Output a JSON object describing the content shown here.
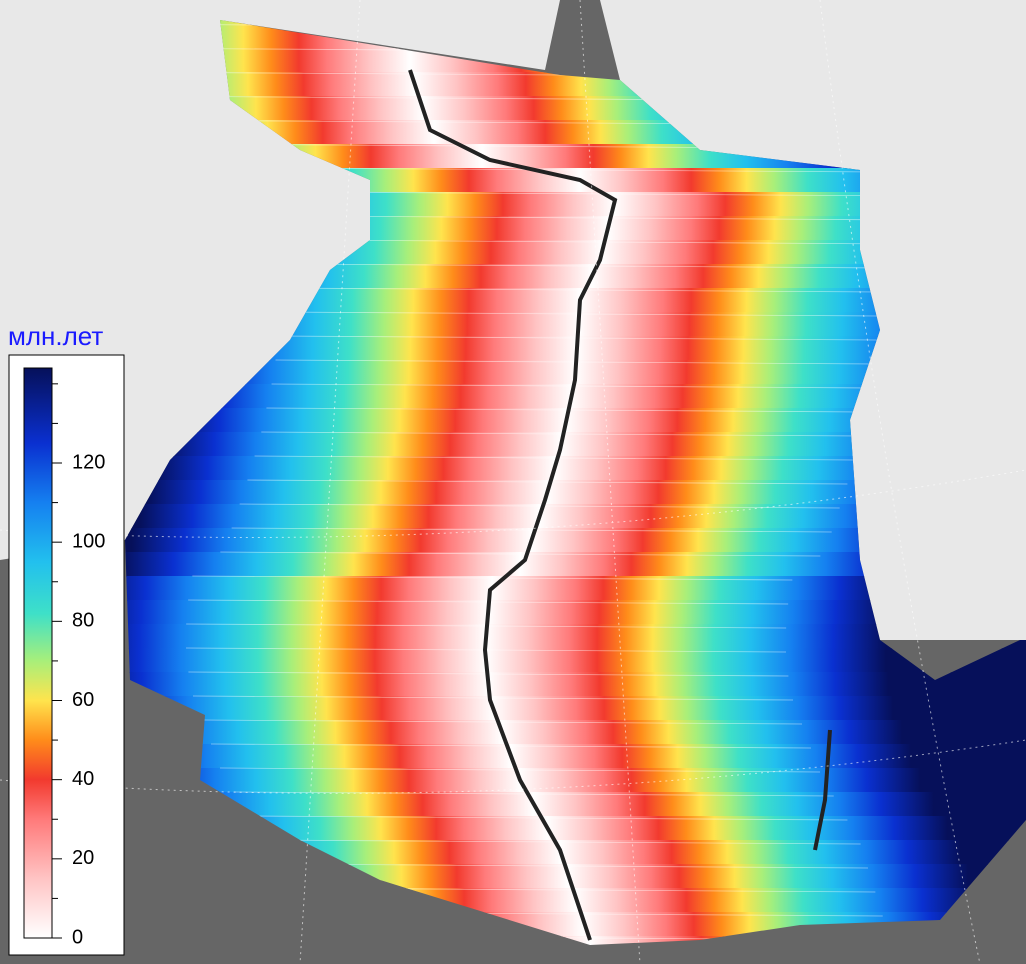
{
  "legend": {
    "title": "млн.лет",
    "range": [
      0,
      144
    ],
    "ticks": [
      0,
      20,
      40,
      60,
      80,
      100,
      120
    ],
    "minor_ticks": [
      10,
      30,
      50,
      70,
      90,
      110,
      130,
      140
    ],
    "colormap": [
      {
        "value": 0,
        "color": "#ffffff"
      },
      {
        "value": 15,
        "color": "#ffc4c4"
      },
      {
        "value": 30,
        "color": "#ff7a7a"
      },
      {
        "value": 40,
        "color": "#f23a2e"
      },
      {
        "value": 50,
        "color": "#ff8c1a"
      },
      {
        "value": 60,
        "color": "#ffe44d"
      },
      {
        "value": 70,
        "color": "#a8ef7a"
      },
      {
        "value": 82,
        "color": "#3ee0c8"
      },
      {
        "value": 95,
        "color": "#22c0ee"
      },
      {
        "value": 110,
        "color": "#1580f0"
      },
      {
        "value": 125,
        "color": "#0a30d0"
      },
      {
        "value": 144,
        "color": "#06105a"
      }
    ]
  }
}
